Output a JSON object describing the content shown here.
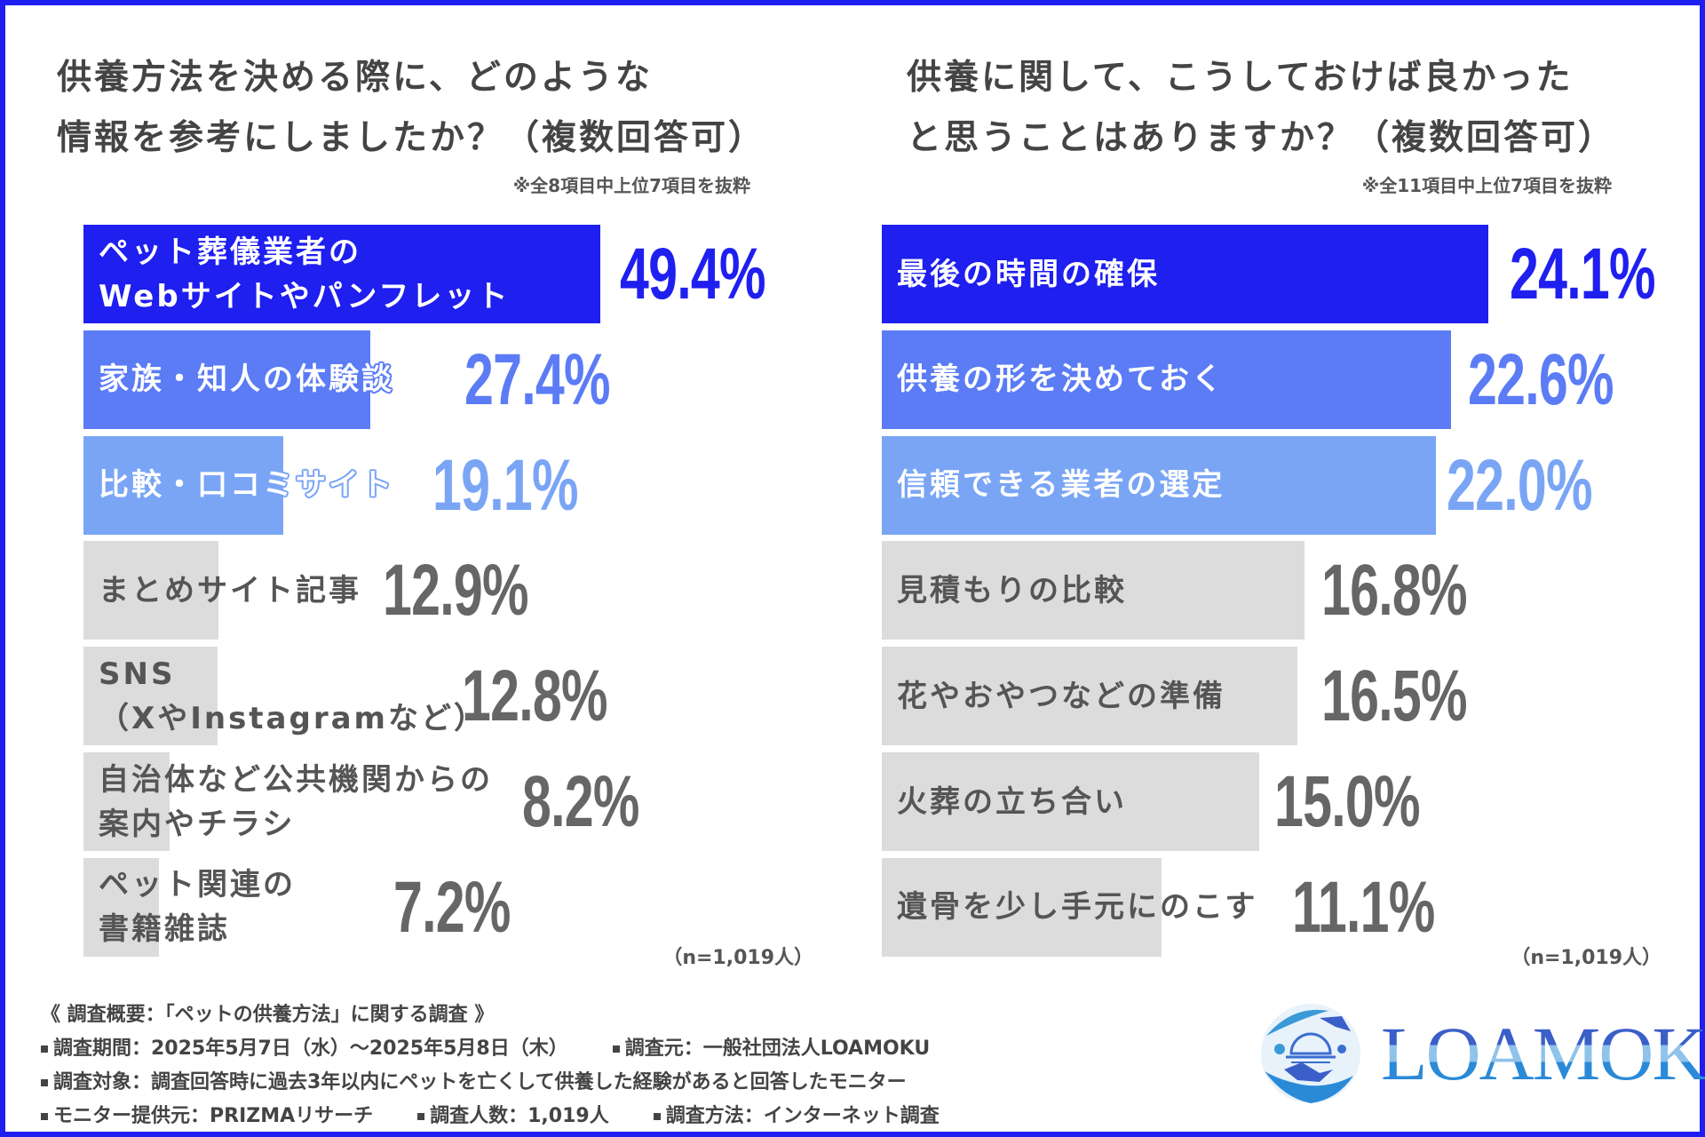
{
  "colors": {
    "border": "#1e1ef2",
    "rank1": "#1f1ff0",
    "rank2": "#5b7cf5",
    "rank3": "#7aa5f5",
    "other_bar": "#dcdcdc",
    "other_text": "#555555",
    "other_pct": "#666666"
  },
  "chart_data": [
    {
      "type": "bar",
      "orientation": "horizontal",
      "title_lines": [
        "供養方法を決める際に、どのような",
        "情報を参考にしましたか？（複数回答可）"
      ],
      "note": "※全8項目中上位7項目を抜粋",
      "sample": "（n=1,019人）",
      "categories": [
        [
          "ペット葬儀業者の",
          "Webサイトやパンフレット"
        ],
        [
          "家族・知人の体験談"
        ],
        [
          "比較・口コミサイト"
        ],
        [
          "まとめサイト記事"
        ],
        [
          "SNS",
          "（XやInstagramなど）"
        ],
        [
          "自治体など公共機関からの",
          "案内やチラシ"
        ],
        [
          "ペット関連の",
          "書籍雑誌"
        ]
      ],
      "values": [
        49.4,
        27.4,
        19.1,
        12.9,
        12.8,
        8.2,
        7.2
      ],
      "value_labels": [
        "49.4%",
        "27.4%",
        "19.1%",
        "12.9%",
        "12.8%",
        "8.2%",
        "7.2%"
      ],
      "unit": "%"
    },
    {
      "type": "bar",
      "orientation": "horizontal",
      "title_lines": [
        "供養に関して、こうしておけば良かった",
        "と思うことはありますか？（複数回答可）"
      ],
      "note": "※全11項目中上位7項目を抜粋",
      "sample": "（n=1,019人）",
      "categories": [
        [
          "最後の時間の確保"
        ],
        [
          "供養の形を決めておく"
        ],
        [
          "信頼できる業者の選定"
        ],
        [
          "見積もりの比較"
        ],
        [
          "花やおやつなどの準備"
        ],
        [
          "火葬の立ち合い"
        ],
        [
          "遺骨を少し手元にのこす"
        ]
      ],
      "values": [
        24.1,
        22.6,
        22.0,
        16.8,
        16.5,
        15.0,
        11.1
      ],
      "value_labels": [
        "24.1%",
        "22.6%",
        "22.0%",
        "16.8%",
        "16.5%",
        "15.0%",
        "11.1%"
      ],
      "unit": "%"
    }
  ],
  "footer": {
    "heading": "《 調査概要：「ペットの供養方法」に関する調査 》",
    "lines": [
      [
        "調査期間：2025年5月7日（水）～2025年5月8日（木）",
        "調査元：一般社団法人LOAMOKU"
      ],
      [
        "調査対象：調査回答時に過去3年以内にペットを亡くして供養した経験があると回答したモニター"
      ],
      [
        "モニター提供元：PRIZMAリサーチ",
        "調査人数：1,019人",
        "調査方法：インターネット調査"
      ]
    ]
  },
  "logo": {
    "text": "LOAMOKU"
  }
}
